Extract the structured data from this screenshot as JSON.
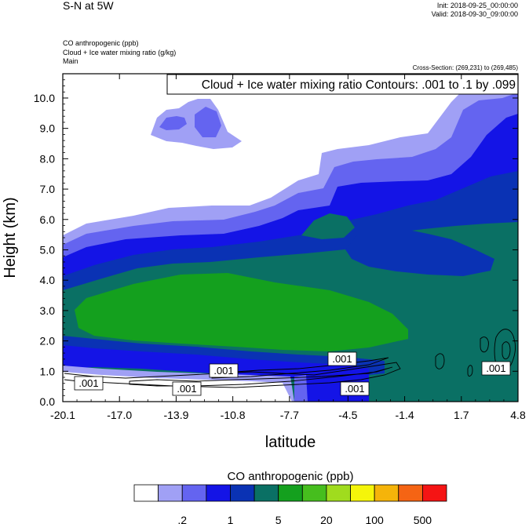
{
  "header": {
    "title": "S-N at 5W",
    "init": "Init: 2018-09-25_00:00:00",
    "valid": "Valid: 2018-09-30_09:00:00",
    "field_lines": [
      "CO anthropogenic   (ppb)",
      "Cloud + Ice water mixing ratio   (g/kg)",
      "Main"
    ],
    "cross_section": "Cross-Section: (269,231) to (269,485)"
  },
  "chart_data": {
    "type": "heatmap",
    "title": "Cloud + Ice water mixing ratio Contours: .001 to .1 by .099",
    "xlabel": "latitude",
    "ylabel": "Height (km)",
    "x_tick_labels": [
      "-20.1",
      "-17.0",
      "-13.9",
      "-10.8",
      "-7.7",
      "-4.5",
      "-1.4",
      "1.7",
      "4.8"
    ],
    "y_tick_labels": [
      "0.0",
      "1.0",
      "2.0",
      "3.0",
      "4.0",
      "5.0",
      "6.0",
      "7.0",
      "8.0",
      "9.0",
      "10.0"
    ],
    "x_range": [
      -20.1,
      4.8
    ],
    "y_range": [
      0,
      10.8
    ],
    "contour_labels": [
      ".001",
      ".001",
      ".001",
      ".001",
      ".001",
      ".001"
    ],
    "colorbar": {
      "title": "CO anthropogenic  (ppb)",
      "colors": [
        "#ffffff",
        "#a0a0f5",
        "#6464f0",
        "#1414e6",
        "#0a32b4",
        "#0a7064",
        "#14a01e",
        "#46be1e",
        "#a0dc1e",
        "#f5f50a",
        "#f5b40a",
        "#f56414",
        "#f51414"
      ],
      "tick_labels": [
        ".2",
        "1",
        "5",
        "20",
        "100",
        "500"
      ]
    }
  }
}
